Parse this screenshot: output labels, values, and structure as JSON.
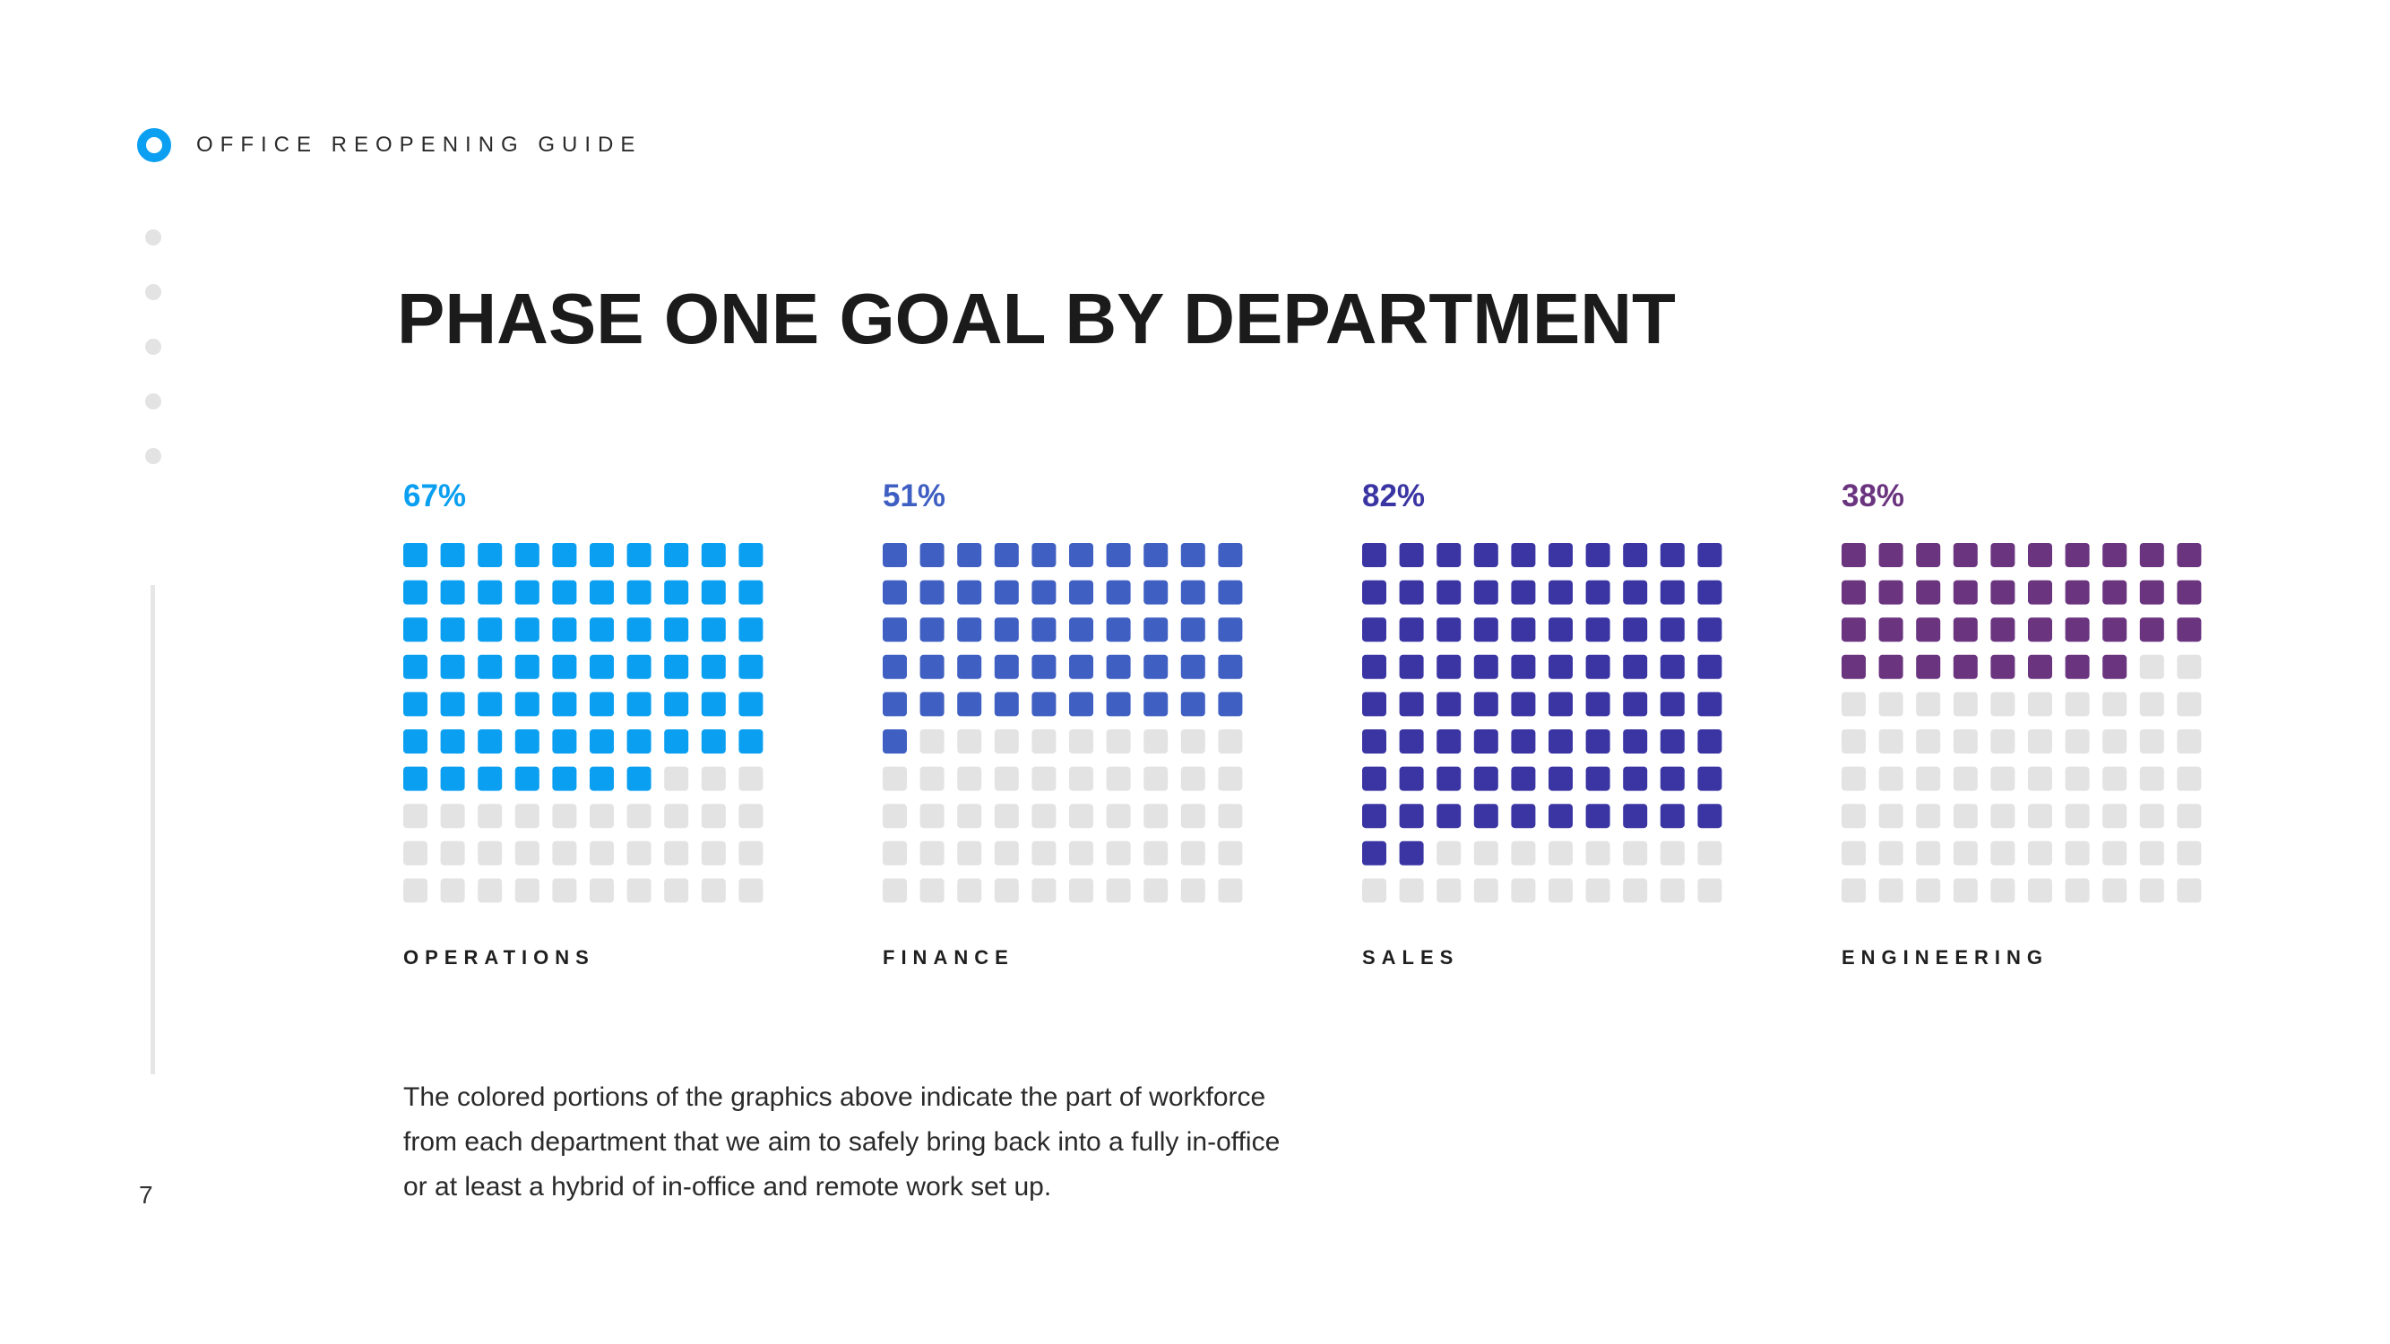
{
  "header": {
    "guide_label": "OFFICE REOPENING GUIDE"
  },
  "page_number": "7",
  "title": "PHASE ONE GOAL BY DEPARTMENT",
  "description": "The colored portions of the graphics above indicate the part of workforce from each department that we aim to safely bring back into a fully in-office or at least a hybrid of in-office and remote work set up.",
  "colors": {
    "accent": "#0a9ff0",
    "empty_square": "#e3e3e3"
  },
  "chart_data": {
    "type": "waffle",
    "title": "PHASE ONE GOAL BY DEPARTMENT",
    "grid": {
      "rows": 10,
      "cols": 10
    },
    "series": [
      {
        "name": "OPERATIONS",
        "value": 67,
        "label": "67%",
        "color": "#0a9ff0"
      },
      {
        "name": "FINANCE",
        "value": 51,
        "label": "51%",
        "color": "#3f5fc2"
      },
      {
        "name": "SALES",
        "value": 82,
        "label": "82%",
        "color": "#3a35a3"
      },
      {
        "name": "ENGINEERING",
        "value": 38,
        "label": "38%",
        "color": "#6a347f"
      }
    ]
  }
}
